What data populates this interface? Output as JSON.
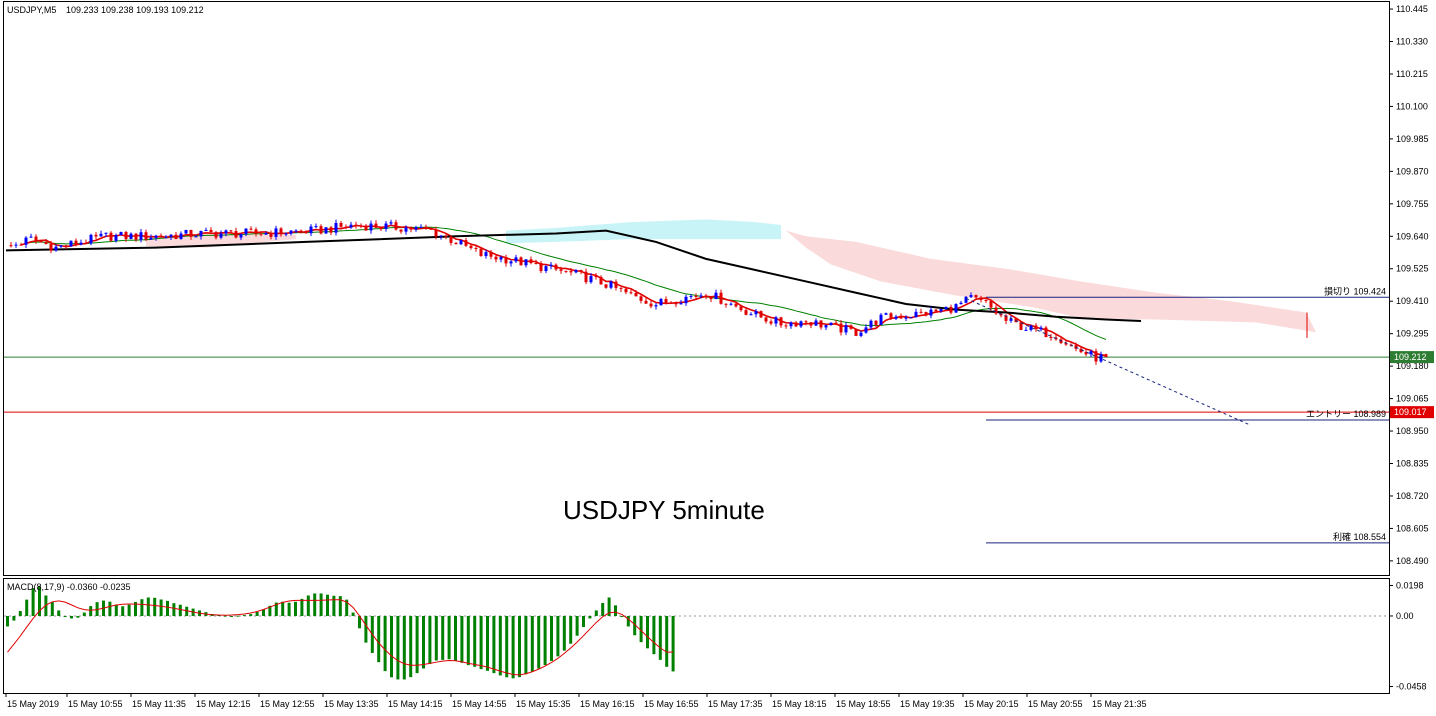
{
  "header": {
    "symbol": "USDJPY,M5",
    "ohlc": "109.233 109.238 109.193 109.212"
  },
  "annotation": "USDJPY 5minute",
  "levels": {
    "stop": {
      "label": "損切り 109.424",
      "price": 109.424,
      "color": "#1a237e"
    },
    "entry": {
      "label": "エントリー 108.989",
      "price": 108.989,
      "color": "#1a237e"
    },
    "take_profit": {
      "label": "利確 108.554",
      "price": 108.554,
      "color": "#1a237e"
    },
    "bid": {
      "label": "109.212",
      "price": 109.212,
      "color": "#2e7d32"
    },
    "red_level": {
      "label": "109.017",
      "price": 109.017,
      "color": "#e00000"
    }
  },
  "macd": {
    "label": "MACD(8,17,9) -0.0360 -0.0235",
    "ticks": [
      "0.0198",
      "0.00",
      "-0.0458"
    ]
  },
  "colors": {
    "bull": "#0000ff",
    "bear": "#e00000",
    "fast_ma": "#e00000",
    "mid_ma": "#008000",
    "slow_ma": "#000000",
    "cloud_up": "#c8f4f8",
    "cloud_down": "#fadada",
    "hist": "#008000",
    "signal": "#e00000"
  },
  "chart_data": {
    "type": "candlestick",
    "symbol": "USDJPY",
    "timeframe": "M5",
    "y_ticks": [
      110.445,
      110.33,
      110.215,
      110.1,
      109.985,
      109.87,
      109.755,
      109.64,
      109.525,
      109.41,
      109.295,
      109.18,
      109.065,
      108.95,
      108.835,
      108.72,
      108.605,
      108.49
    ],
    "y_tick_labels": [
      "110.445",
      "110.330",
      "110.215",
      "110.100",
      "109.985",
      "109.870",
      "109.755",
      "109.640",
      "109.525",
      "109.410",
      "109.295",
      "109.180",
      "109.065",
      "108.950",
      "108.835",
      "108.720",
      "108.605",
      "108.490"
    ],
    "ylim": [
      108.44,
      110.47
    ],
    "x_tick_labels": [
      "15 May 2019",
      "15 May 10:55",
      "15 May 11:35",
      "15 May 12:15",
      "15 May 12:55",
      "15 May 13:35",
      "15 May 14:15",
      "15 May 14:55",
      "15 May 15:35",
      "15 May 16:15",
      "15 May 16:55",
      "15 May 17:35",
      "15 May 18:15",
      "15 May 18:55",
      "15 May 19:35",
      "15 May 20:15",
      "15 May 20:55",
      "15 May 21:35"
    ],
    "close_path": [
      [
        0,
        109.6
      ],
      [
        5,
        109.63
      ],
      [
        10,
        109.6
      ],
      [
        20,
        109.64
      ],
      [
        30,
        109.64
      ],
      [
        40,
        109.65
      ],
      [
        50,
        109.65
      ],
      [
        62,
        109.66
      ],
      [
        70,
        109.68
      ],
      [
        80,
        109.67
      ],
      [
        85,
        109.66
      ],
      [
        90,
        109.62
      ],
      [
        95,
        109.575
      ],
      [
        100,
        109.56
      ],
      [
        105,
        109.54
      ],
      [
        110,
        109.52
      ],
      [
        115,
        109.5
      ],
      [
        120,
        109.47
      ],
      [
        125,
        109.43
      ],
      [
        130,
        109.4
      ],
      [
        135,
        109.42
      ],
      [
        140,
        109.44
      ],
      [
        145,
        109.4
      ],
      [
        150,
        109.36
      ],
      [
        155,
        109.33
      ],
      [
        160,
        109.34
      ],
      [
        165,
        109.32
      ],
      [
        170,
        109.3
      ],
      [
        175,
        109.35
      ],
      [
        180,
        109.36
      ],
      [
        185,
        109.37
      ],
      [
        190,
        109.39
      ],
      [
        193,
        109.42
      ],
      [
        196,
        109.4
      ],
      [
        200,
        109.34
      ],
      [
        205,
        109.31
      ],
      [
        210,
        109.29
      ],
      [
        214,
        109.24
      ],
      [
        218,
        109.21
      ],
      [
        220,
        109.212
      ]
    ],
    "cloud_polygons": [
      {
        "kind": "up",
        "points": [
          [
            100,
            109.66
          ],
          [
            110,
            109.67
          ],
          [
            125,
            109.69
          ],
          [
            140,
            109.7
          ],
          [
            150,
            109.69
          ],
          [
            155,
            109.68
          ],
          [
            155,
            109.63
          ],
          [
            140,
            109.63
          ],
          [
            125,
            109.63
          ],
          [
            110,
            109.62
          ],
          [
            100,
            109.615
          ]
        ]
      },
      {
        "kind": "down",
        "points": [
          [
            28,
            109.64
          ],
          [
            40,
            109.65
          ],
          [
            58,
            109.645
          ],
          [
            58,
            109.63
          ],
          [
            40,
            109.6
          ],
          [
            28,
            109.605
          ]
        ]
      },
      {
        "kind": "down",
        "points": [
          [
            156,
            109.66
          ],
          [
            160,
            109.64
          ],
          [
            170,
            109.62
          ],
          [
            185,
            109.56
          ],
          [
            200,
            109.525
          ],
          [
            215,
            109.48
          ],
          [
            230,
            109.44
          ],
          [
            245,
            109.41
          ],
          [
            260,
            109.37
          ],
          [
            262,
            109.3
          ],
          [
            250,
            109.335
          ],
          [
            230,
            109.345
          ],
          [
            215,
            109.35
          ],
          [
            205,
            109.39
          ],
          [
            190,
            109.43
          ],
          [
            175,
            109.48
          ],
          [
            165,
            109.54
          ],
          [
            160,
            109.6
          ]
        ]
      }
    ],
    "slow_ma": [
      [
        0,
        109.59
      ],
      [
        30,
        109.6
      ],
      [
        60,
        109.62
      ],
      [
        90,
        109.64
      ],
      [
        110,
        109.65
      ],
      [
        120,
        109.66
      ],
      [
        130,
        109.62
      ],
      [
        140,
        109.56
      ],
      [
        150,
        109.52
      ],
      [
        160,
        109.48
      ],
      [
        170,
        109.44
      ],
      [
        180,
        109.4
      ],
      [
        190,
        109.38
      ],
      [
        200,
        109.37
      ],
      [
        210,
        109.355
      ],
      [
        220,
        109.345
      ],
      [
        227,
        109.34
      ]
    ],
    "trend_line": [
      [
        192,
        109.42
      ],
      [
        249,
        108.97
      ]
    ],
    "macd_hist": [
      -0.0068,
      -0.003,
      0.0032,
      0.0106,
      0.0181,
      0.0193,
      0.0133,
      0.0091,
      0.0036,
      -0.0007,
      -0.0016,
      -0.0011,
      0.0022,
      0.0064,
      0.009,
      0.01,
      0.0093,
      0.0073,
      0.0063,
      0.0073,
      0.0091,
      0.0109,
      0.012,
      0.0118,
      0.0107,
      0.0098,
      0.0083,
      0.0073,
      0.006,
      0.0048,
      0.0036,
      0.0025,
      0.0013,
      0.0006,
      0.0002,
      -0.0002,
      0.0002,
      0.0006,
      0.0012,
      0.0026,
      0.0042,
      0.0066,
      0.0087,
      0.0092,
      0.0086,
      0.0092,
      0.0111,
      0.0133,
      0.0146,
      0.0146,
      0.0138,
      0.0131,
      0.0129,
      0.0106,
      0.0022,
      -0.008,
      -0.0173,
      -0.024,
      -0.03,
      -0.0358,
      -0.0398,
      -0.0412,
      -0.0412,
      -0.0397,
      -0.0371,
      -0.0341,
      -0.0311,
      -0.0289,
      -0.0285,
      -0.0281,
      -0.0289,
      -0.0304,
      -0.0319,
      -0.033,
      -0.0345,
      -0.0356,
      -0.0371,
      -0.0386,
      -0.0398,
      -0.0405,
      -0.0397,
      -0.0378,
      -0.036,
      -0.0341,
      -0.0319,
      -0.0292,
      -0.0262,
      -0.0225,
      -0.018,
      -0.0128,
      -0.0072,
      -0.0016,
      0.0036,
      0.0084,
      0.012,
      0.0069,
      0.0,
      -0.0068,
      -0.0125,
      -0.017,
      -0.021,
      -0.0248,
      -0.0285,
      -0.033,
      -0.036
    ],
    "macd_signal": [
      -0.0235,
      -0.0183,
      -0.013,
      -0.0072,
      -0.0016,
      0.0033,
      0.007,
      0.0092,
      0.0098,
      0.009,
      0.0072,
      0.0053,
      0.0041,
      0.0037,
      0.0041,
      0.0051,
      0.0062,
      0.0071,
      0.0076,
      0.0078,
      0.0077,
      0.0075,
      0.0072,
      0.0068,
      0.0063,
      0.0057,
      0.005,
      0.0042,
      0.0034,
      0.0026,
      0.0018,
      0.0012,
      0.0008,
      0.0006,
      0.0005,
      0.0006,
      0.0009,
      0.0013,
      0.0019,
      0.0029,
      0.0042,
      0.0058,
      0.0074,
      0.0088,
      0.0097,
      0.0101,
      0.0101,
      0.0101,
      0.0101,
      0.0102,
      0.0104,
      0.0105,
      0.0105,
      0.009,
      0.0055,
      0.0,
      -0.006,
      -0.012,
      -0.0175,
      -0.022,
      -0.026,
      -0.029,
      -0.031,
      -0.032,
      -0.032,
      -0.0315,
      -0.0308,
      -0.03,
      -0.0293,
      -0.0289,
      -0.0291,
      -0.0298,
      -0.0307,
      -0.0315,
      -0.0322,
      -0.0332,
      -0.0345,
      -0.0358,
      -0.037,
      -0.038,
      -0.0382,
      -0.0375,
      -0.0362,
      -0.0345,
      -0.0325,
      -0.0302,
      -0.0275,
      -0.0243,
      -0.0208,
      -0.017,
      -0.0128,
      -0.0085,
      -0.0042,
      -0.0005,
      0.002,
      0.0025,
      0.001,
      -0.002,
      -0.0055,
      -0.0095,
      -0.0135,
      -0.0172,
      -0.0208,
      -0.0235,
      -0.0235
    ],
    "macd_ylim": [
      -0.05,
      0.024
    ]
  }
}
